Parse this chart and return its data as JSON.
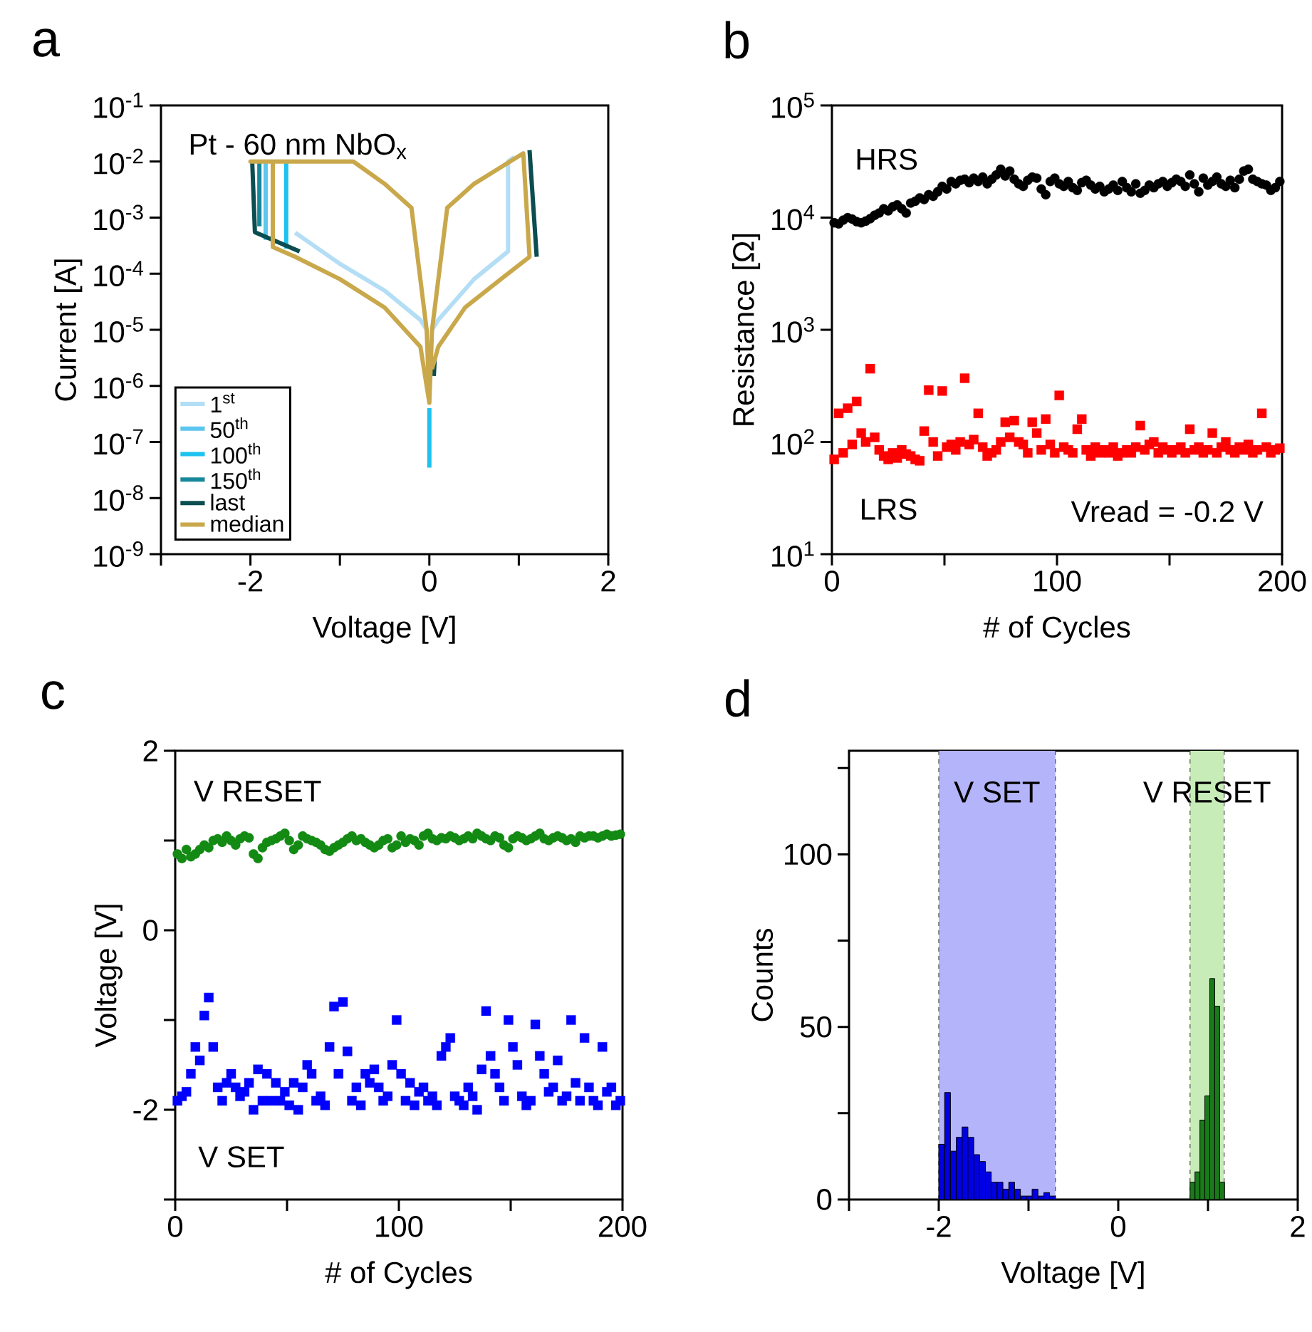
{
  "chart_data": [
    {
      "type": "line",
      "title": "a",
      "xlabel": "Voltage [V]",
      "ylabel": "Current [A]",
      "log": "y",
      "legend": "bottom left",
      "marker": "none",
      "line_style": "solid",
      "annotations": [
        "Pt - 60 nm NbO$_{x}$"
      ],
      "xlim": [
        -3,
        2
      ],
      "xticks": [
        {
          "value": -3,
          "label": null
        },
        -2,
        {
          "value": -1,
          "label": null
        },
        0,
        {
          "value": 1,
          "label": null
        },
        2
      ],
      "ylim": [
        1e-09,
        0.1
      ],
      "yticks": [
        {
          "value": 1e-09,
          "label": "10$^{-9}$"
        },
        {
          "value": 1e-08,
          "label": "10$^{-8}$"
        },
        {
          "value": 1e-07,
          "label": "10$^{-7}$"
        },
        {
          "value": 1e-06,
          "label": "10$^{-6}$"
        },
        {
          "value": 1e-05,
          "label": "10$^{-5}$"
        },
        {
          "value": 0.0001,
          "label": "10$^{-4}$"
        },
        {
          "value": 0.001,
          "label": "10$^{-3}$"
        },
        {
          "value": 0.01,
          "label": "10$^{-2}$"
        },
        {
          "value": 0.1,
          "label": "10$^{-1}$"
        }
      ],
      "series": [
        {
          "name": "1$^{st}$",
          "color": "#b3def5",
          "x": [
            -0.03,
            -0.1,
            -0.5,
            -1.0,
            -1.5,
            0,
            0.95,
            0.88,
            0.88,
            0.5,
            0.1,
            0.03
          ],
          "values": [
            1e-05,
            1.5e-05,
            5e-05,
            0.00015,
            0.00054,
            null,
            0.012,
            0.01,
            0.00025,
            8e-05,
            1.5e-05,
            1e-05
          ]
        },
        {
          "name": "50$^{th}$",
          "color": "#5cc6ee",
          "x": [
            -1.83,
            -1.83
          ],
          "values": [
            0.0004,
            0.01
          ]
        },
        {
          "name": "100$^{th}$",
          "color": "#1ec2f0",
          "x": [
            -1.6,
            -1.6,
            -1.0,
            0,
            0
          ],
          "values": [
            0.00028,
            0.01,
            null,
            3.5e-08,
            4e-07
          ]
        },
        {
          "name": "150$^{th}$",
          "color": "#17879a",
          "x": [
            -1.9,
            -1.9
          ],
          "values": [
            0.0007,
            0.01
          ]
        },
        {
          "name": "last",
          "color": "#0b4d50",
          "x": [
            -1.45,
            -1.95,
            -1.98,
            -1.0,
            1.12,
            1.2,
            0.6,
            0.06,
            0.05
          ],
          "values": [
            0.00025,
            0.00055,
            0.01,
            null,
            0.016,
            0.0002,
            null,
            3e-06,
            1.5e-06
          ]
        },
        {
          "name": "median",
          "color": "#c9a84c",
          "x": [
            0,
            -0.1,
            -0.5,
            -1.0,
            -1.5,
            -1.75,
            -1.75,
            -2.0,
            -0.85,
            -0.5,
            -0.2,
            -0.03,
            0,
            0.03,
            0.2,
            0.5,
            1.05,
            1.12,
            0.8,
            0.4,
            0.1,
            0.03
          ],
          "values": [
            5e-07,
            5e-06,
            2.5e-05,
            8e-05,
            0.0002,
            0.0003,
            0.01,
            0.01,
            0.01,
            0.004,
            0.0015,
            1e-05,
            5e-07,
            1e-05,
            0.0015,
            0.004,
            0.014,
            0.0002,
            8e-05,
            2.5e-05,
            5e-06,
            2e-06
          ]
        }
      ]
    },
    {
      "type": "scatter",
      "title": "b",
      "xlabel": "# of Cycles",
      "ylabel": "Resistance [Ω]",
      "log": "y",
      "annotations": [
        "Vread = -0.2 V"
      ],
      "xlim": [
        0,
        200
      ],
      "xticks": [
        0,
        {
          "value": 50,
          "label": null
        },
        100,
        {
          "value": 150,
          "label": null
        },
        200
      ],
      "ylim": [
        10,
        100000
      ],
      "yticks": [
        {
          "value": 10,
          "label": "10$^{1}$"
        },
        {
          "value": 100,
          "label": "10$^{2}$"
        },
        {
          "value": 1000,
          "label": "10$^{3}$"
        },
        {
          "value": 10000,
          "label": "10$^{4}$"
        },
        {
          "value": 100000,
          "label": "10$^{5}$"
        }
      ],
      "series": [
        {
          "name": "HRS",
          "color": "#000000",
          "marker": "circle",
          "x": [
            1,
            3,
            5,
            7,
            9,
            11,
            13,
            15,
            17,
            19,
            21,
            23,
            25,
            27,
            29,
            31,
            33,
            35,
            37,
            39,
            41,
            43,
            45,
            47,
            49,
            51,
            53,
            55,
            57,
            59,
            61,
            63,
            65,
            67,
            69,
            71,
            73,
            75,
            77,
            79,
            81,
            83,
            85,
            87,
            89,
            91,
            93,
            95,
            97,
            99,
            101,
            103,
            105,
            107,
            109,
            111,
            113,
            115,
            117,
            119,
            121,
            123,
            125,
            127,
            129,
            131,
            133,
            135,
            137,
            139,
            141,
            143,
            145,
            147,
            149,
            151,
            153,
            155,
            157,
            159,
            161,
            163,
            165,
            167,
            169,
            171,
            173,
            175,
            177,
            179,
            181,
            183,
            185,
            187,
            189,
            191,
            193,
            195,
            197,
            199
          ],
          "values": [
            9000,
            8800,
            9500,
            10000,
            9700,
            9200,
            9000,
            9300,
            9800,
            10500,
            11000,
            12000,
            11500,
            12500,
            13000,
            12000,
            11000,
            13500,
            14000,
            15000,
            14500,
            16000,
            15500,
            17000,
            19000,
            18000,
            21000,
            20000,
            21500,
            22000,
            20500,
            22500,
            21000,
            23000,
            20000,
            22000,
            24000,
            27000,
            23500,
            26000,
            22000,
            20000,
            19000,
            21500,
            23000,
            22500,
            18000,
            16000,
            21000,
            22500,
            20000,
            19000,
            21000,
            18500,
            17500,
            20500,
            21500,
            19500,
            18000,
            19000,
            17000,
            18000,
            19500,
            17500,
            21000,
            18500,
            17000,
            20000,
            16500,
            17500,
            19500,
            18500,
            20000,
            21000,
            19000,
            20500,
            22000,
            21000,
            19000,
            24000,
            20000,
            17000,
            22500,
            19500,
            21000,
            23000,
            20000,
            19000,
            21500,
            18500,
            22000,
            26000,
            27000,
            22000,
            21000,
            20000,
            19500,
            17500,
            18500,
            21000
          ]
        },
        {
          "name": "LRS",
          "color": "#ff0000",
          "marker": "square",
          "x": [
            1,
            3,
            5,
            7,
            9,
            11,
            13,
            15,
            17,
            19,
            21,
            23,
            25,
            27,
            29,
            31,
            33,
            35,
            37,
            39,
            41,
            43,
            45,
            47,
            49,
            51,
            53,
            55,
            57,
            59,
            61,
            63,
            65,
            67,
            69,
            71,
            73,
            75,
            77,
            79,
            81,
            83,
            85,
            87,
            89,
            91,
            93,
            95,
            97,
            99,
            101,
            103,
            105,
            107,
            109,
            111,
            113,
            115,
            117,
            119,
            121,
            123,
            125,
            127,
            129,
            131,
            133,
            135,
            137,
            139,
            141,
            143,
            145,
            147,
            149,
            151,
            153,
            155,
            157,
            159,
            161,
            163,
            165,
            167,
            169,
            171,
            173,
            175,
            177,
            179,
            181,
            183,
            185,
            187,
            189,
            191,
            193,
            195,
            197,
            199
          ],
          "values": [
            70,
            180,
            80,
            200,
            95,
            230,
            120,
            100,
            450,
            110,
            85,
            75,
            70,
            80,
            72,
            85,
            78,
            75,
            70,
            68,
            125,
            290,
            100,
            75,
            285,
            90,
            95,
            85,
            100,
            370,
            95,
            105,
            180,
            90,
            75,
            80,
            85,
            100,
            150,
            110,
            155,
            100,
            95,
            80,
            150,
            120,
            85,
            160,
            95,
            80,
            260,
            90,
            85,
            80,
            130,
            160,
            85,
            75,
            90,
            80,
            85,
            80,
            90,
            75,
            80,
            85,
            80,
            90,
            140,
            85,
            95,
            100,
            80,
            90,
            85,
            80,
            85,
            90,
            80,
            130,
            85,
            90,
            80,
            85,
            120,
            80,
            90,
            100,
            85,
            80,
            90,
            85,
            95,
            80,
            85,
            180,
            90,
            80,
            85,
            88
          ]
        }
      ]
    },
    {
      "type": "scatter",
      "title": "c",
      "xlabel": "# of Cycles",
      "ylabel": "Voltage [V]",
      "xlim": [
        0,
        200
      ],
      "xticks": [
        0,
        {
          "value": 50,
          "label": null
        },
        100,
        {
          "value": 150,
          "label": null
        },
        200
      ],
      "ylim": [
        -3,
        2
      ],
      "yticks": [
        {
          "value": -3,
          "label": null
        },
        -2,
        {
          "value": -1,
          "label": null
        },
        0,
        {
          "value": 1,
          "label": null
        },
        2
      ],
      "series": [
        {
          "name": "V RESET",
          "color": "#138a13",
          "marker": "circle",
          "x": [
            1,
            3,
            5,
            7,
            9,
            11,
            13,
            15,
            17,
            19,
            21,
            23,
            25,
            27,
            29,
            31,
            33,
            35,
            37,
            39,
            41,
            43,
            45,
            47,
            49,
            51,
            53,
            55,
            57,
            59,
            61,
            63,
            65,
            67,
            69,
            71,
            73,
            75,
            77,
            79,
            81,
            83,
            85,
            87,
            89,
            91,
            93,
            95,
            97,
            99,
            101,
            103,
            105,
            107,
            109,
            111,
            113,
            115,
            117,
            119,
            121,
            123,
            125,
            127,
            129,
            131,
            133,
            135,
            137,
            139,
            141,
            143,
            145,
            147,
            149,
            151,
            153,
            155,
            157,
            159,
            161,
            163,
            165,
            167,
            169,
            171,
            173,
            175,
            177,
            179,
            181,
            183,
            185,
            187,
            189,
            191,
            193,
            195,
            197,
            199
          ],
          "values": [
            0.85,
            0.8,
            0.9,
            0.82,
            0.85,
            0.9,
            0.95,
            0.92,
            1.0,
            1.02,
            0.98,
            1.05,
            1.0,
            0.95,
            1.02,
            1.05,
            1.03,
            0.85,
            0.8,
            0.92,
            0.98,
            1.0,
            1.02,
            1.05,
            1.08,
            1.0,
            0.9,
            0.95,
            1.05,
            1.02,
            1.0,
            0.98,
            0.95,
            0.9,
            0.88,
            0.92,
            0.95,
            0.98,
            1.02,
            1.05,
            1.0,
            1.02,
            0.98,
            0.95,
            0.92,
            0.95,
            1.0,
            1.02,
            0.92,
            0.95,
            1.05,
            0.98,
            1.02,
            1.0,
            0.95,
            1.05,
            1.08,
            1.02,
            1.0,
            1.03,
            1.02,
            1.05,
            1.03,
            1.0,
            1.02,
            1.05,
            1.02,
            1.08,
            1.05,
            1.02,
            1.0,
            1.05,
            1.03,
            0.95,
            0.92,
            1.02,
            1.05,
            1.03,
            1.0,
            1.02,
            1.05,
            1.08,
            1.02,
            1.0,
            1.03,
            1.05,
            1.03,
            1.0,
            1.02,
            0.98,
            1.05,
            1.03,
            1.05,
            1.05,
            1.03,
            1.05,
            1.07,
            1.05,
            1.06,
            1.07
          ]
        },
        {
          "name": "V SET",
          "color": "#0000ff",
          "marker": "square",
          "x": [
            1,
            3,
            5,
            7,
            9,
            11,
            13,
            15,
            17,
            19,
            21,
            23,
            25,
            27,
            29,
            31,
            33,
            35,
            37,
            39,
            41,
            43,
            45,
            47,
            49,
            51,
            53,
            55,
            57,
            59,
            61,
            63,
            65,
            67,
            69,
            71,
            73,
            75,
            77,
            79,
            81,
            83,
            85,
            87,
            89,
            91,
            93,
            95,
            97,
            99,
            101,
            103,
            105,
            107,
            109,
            111,
            113,
            115,
            117,
            119,
            121,
            123,
            125,
            127,
            129,
            131,
            133,
            135,
            137,
            139,
            141,
            143,
            145,
            147,
            149,
            151,
            153,
            155,
            157,
            159,
            161,
            163,
            165,
            167,
            169,
            171,
            173,
            175,
            177,
            179,
            181,
            183,
            185,
            187,
            189,
            191,
            193,
            195,
            197,
            199
          ],
          "values": [
            -1.9,
            -1.85,
            -1.8,
            -1.6,
            -1.3,
            -1.45,
            -0.95,
            -0.75,
            -1.3,
            -1.75,
            -1.9,
            -1.7,
            -1.6,
            -1.75,
            -1.85,
            -1.8,
            -1.7,
            -2.0,
            -1.55,
            -1.9,
            -1.6,
            -1.9,
            -1.7,
            -1.9,
            -1.8,
            -1.95,
            -1.7,
            -2.0,
            -1.75,
            -1.5,
            -1.6,
            -1.9,
            -1.85,
            -1.95,
            -1.3,
            -0.85,
            -1.6,
            -0.8,
            -1.35,
            -1.9,
            -1.75,
            -1.95,
            -1.6,
            -1.7,
            -1.55,
            -1.75,
            -1.9,
            -1.85,
            -1.5,
            -1.0,
            -1.6,
            -1.9,
            -1.7,
            -1.95,
            -1.8,
            -1.75,
            -1.9,
            -1.85,
            -1.95,
            -1.4,
            -1.3,
            -1.2,
            -1.85,
            -1.9,
            -1.95,
            -1.75,
            -1.85,
            -2.0,
            -1.55,
            -0.9,
            -1.4,
            -1.6,
            -1.75,
            -1.9,
            -1.0,
            -1.3,
            -1.5,
            -1.85,
            -1.95,
            -1.9,
            -1.05,
            -1.4,
            -1.6,
            -1.8,
            -1.75,
            -1.45,
            -1.9,
            -1.85,
            -1.0,
            -1.7,
            -1.9,
            -1.2,
            -1.75,
            -1.9,
            -1.95,
            -1.3,
            -1.8,
            -1.75,
            -1.95,
            -1.9
          ]
        }
      ]
    },
    {
      "type": "histogram",
      "title": "d",
      "xlabel": "Voltage [V]",
      "ylabel": "Counts",
      "xlim": [
        -3,
        2
      ],
      "xticks": [
        {
          "value": -3,
          "label": null
        },
        -2,
        {
          "value": -1,
          "label": null
        },
        0,
        {
          "value": 1,
          "label": null
        },
        2
      ],
      "ylim": [
        0,
        130
      ],
      "yticks": [
        0,
        {
          "value": 25,
          "label": null
        },
        50,
        {
          "value": 75,
          "label": null
        },
        100,
        {
          "value": 125,
          "label": null
        }
      ],
      "bands": [
        {
          "axis": "x",
          "from": -2.0,
          "to": -0.7,
          "label": "V SET",
          "color": "#b4b4fa"
        },
        {
          "axis": "x",
          "from": 0.8,
          "to": 1.18,
          "label": "V RESET",
          "color": "#c8ecb8"
        }
      ],
      "bins": [
        -2.0,
        -1.935,
        -1.87,
        -1.805,
        -1.74,
        -1.675,
        -1.61,
        -1.545,
        -1.48,
        -1.415,
        -1.35,
        -1.285,
        -1.22,
        -1.155,
        -1.09,
        -1.025,
        -0.96,
        -0.895,
        -0.83,
        -0.765,
        -0.7,
        0.8,
        0.855,
        0.91,
        0.965,
        1.02,
        1.075,
        1.13,
        1.185
      ],
      "values": [
        16,
        31,
        14,
        18,
        21,
        18,
        13,
        11,
        8,
        5,
        5,
        3,
        5,
        3,
        1,
        1,
        3,
        1,
        2,
        1,
        null,
        5,
        8,
        23,
        30,
        64,
        56,
        5
      ],
      "colors": [
        "#0000e0",
        "#0000e0",
        "#0000e0",
        "#0000e0",
        "#0000e0",
        "#0000e0",
        "#0000e0",
        "#0000e0",
        "#0000e0",
        "#0000e0",
        "#0000e0",
        "#0000e0",
        "#0000e0",
        "#0000e0",
        "#0000e0",
        "#0000e0",
        "#0000e0",
        "#0000e0",
        "#0000e0",
        "#0000e0",
        null,
        "#1a7a1a",
        "#1a7a1a",
        "#1a7a1a",
        "#1a7a1a",
        "#1a7a1a",
        "#1a7a1a",
        "#1a7a1a"
      ]
    }
  ]
}
